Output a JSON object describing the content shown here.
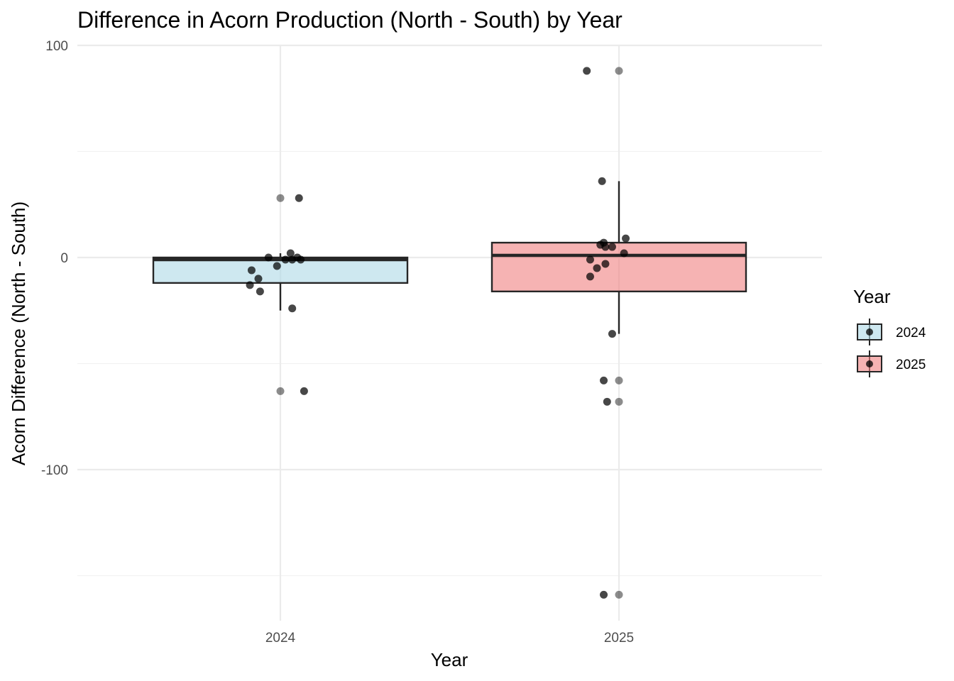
{
  "chart_data": {
    "type": "boxplot",
    "title": "Difference in Acorn Production (North - South) by Year",
    "xlabel": "Year",
    "ylabel": "Acorn Difference (North - South)",
    "categories": [
      "2024",
      "2025"
    ],
    "ylim": [
      -171,
      100
    ],
    "yticks": [
      100,
      0,
      -100
    ],
    "ytick_labels": [
      "100",
      "0",
      "-100"
    ],
    "grid": true,
    "legend": {
      "title": "Year",
      "position": "right",
      "entries": [
        "2024",
        "2025"
      ]
    },
    "colors": {
      "2024": "#add8e6",
      "2025": "#f08080",
      "box_stroke": "#262626",
      "grid_major": "#ebebeb",
      "grid_minor": "#f2f2f2"
    },
    "boxes": [
      {
        "category": "2024",
        "q1": -12,
        "median": -1,
        "q3": 0,
        "whisker_low": -25,
        "whisker_high": 2
      },
      {
        "category": "2025",
        "q1": -16,
        "median": 1,
        "q3": 7,
        "whisker_low": -36,
        "whisker_high": 36
      }
    ],
    "outliers": [
      {
        "category": "2024",
        "values": [
          28,
          -63
        ]
      },
      {
        "category": "2025",
        "values": [
          88,
          -58,
          -68,
          -159
        ]
      }
    ],
    "jitter_points": [
      {
        "category": "2024",
        "points": [
          [
            0.055,
            28
          ],
          [
            0.03,
            2
          ],
          [
            0.05,
            0
          ],
          [
            0.06,
            -1
          ],
          [
            0.035,
            -1
          ],
          [
            0.015,
            -1
          ],
          [
            -0.035,
            0
          ],
          [
            -0.01,
            -4
          ],
          [
            -0.085,
            -6
          ],
          [
            -0.065,
            -10
          ],
          [
            -0.09,
            -13
          ],
          [
            -0.06,
            -16
          ],
          [
            0.035,
            -24
          ],
          [
            0.07,
            -63
          ]
        ]
      },
      {
        "category": "2025",
        "points": [
          [
            -0.095,
            88
          ],
          [
            -0.05,
            36
          ],
          [
            0.02,
            9
          ],
          [
            -0.045,
            7
          ],
          [
            -0.055,
            6
          ],
          [
            -0.04,
            5
          ],
          [
            -0.02,
            5
          ],
          [
            0.015,
            2
          ],
          [
            -0.085,
            -1
          ],
          [
            -0.04,
            -3
          ],
          [
            -0.065,
            -5
          ],
          [
            -0.085,
            -9
          ],
          [
            -0.02,
            -36
          ],
          [
            -0.045,
            -58
          ],
          [
            -0.035,
            -68
          ],
          [
            -0.045,
            -159
          ]
        ]
      }
    ]
  }
}
